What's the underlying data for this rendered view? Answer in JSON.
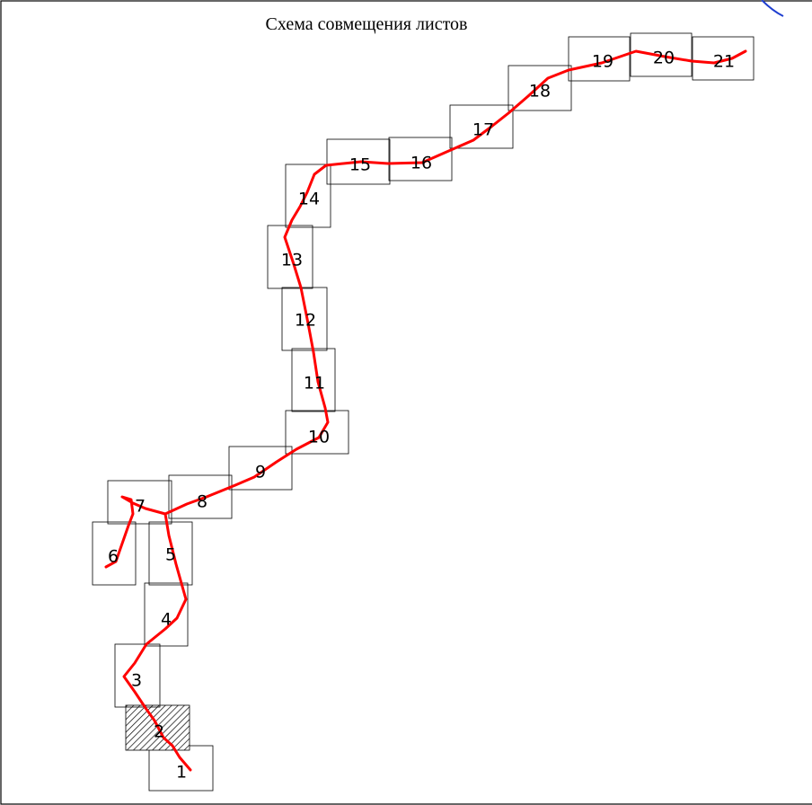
{
  "title": "Схема совмещения листов",
  "active_sheet": "2",
  "colors": {
    "route": "#ff0000",
    "frame": "#000000",
    "corner_mark": "#1f3fd0"
  },
  "sheets": [
    {
      "label": "1"
    },
    {
      "label": "2"
    },
    {
      "label": "3"
    },
    {
      "label": "4"
    },
    {
      "label": "5"
    },
    {
      "label": "6"
    },
    {
      "label": "7"
    },
    {
      "label": "8"
    },
    {
      "label": "9"
    },
    {
      "label": "10"
    },
    {
      "label": "11"
    },
    {
      "label": "12"
    },
    {
      "label": "13"
    },
    {
      "label": "14"
    },
    {
      "label": "15"
    },
    {
      "label": "16"
    },
    {
      "label": "17"
    },
    {
      "label": "18"
    },
    {
      "label": "19"
    },
    {
      "label": "20"
    },
    {
      "label": "21"
    }
  ]
}
